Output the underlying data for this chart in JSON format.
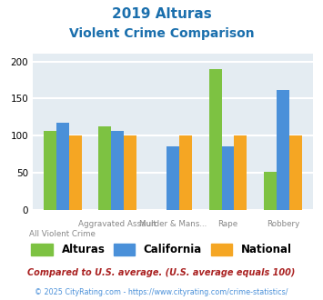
{
  "title_line1": "2019 Alturas",
  "title_line2": "Violent Crime Comparison",
  "categories": [
    "All Violent Crime",
    "Aggravated Assault",
    "Murder & Mans...",
    "Rape",
    "Robbery"
  ],
  "series": {
    "Alturas": [
      107,
      113,
      0,
      190,
      51
    ],
    "California": [
      118,
      107,
      86,
      86,
      162
    ],
    "National": [
      100,
      100,
      100,
      100,
      100
    ]
  },
  "colors": {
    "Alturas": "#7dc242",
    "California": "#4a90d9",
    "National": "#f5a623"
  },
  "ylim": [
    0,
    210
  ],
  "yticks": [
    0,
    50,
    100,
    150,
    200
  ],
  "title_color": "#1a6fad",
  "background_color": "#e4ecf2",
  "grid_color": "#ffffff",
  "xtick_top": [
    "",
    "Aggravated Assault",
    "Murder & Mans...",
    "Rape",
    "Robbery"
  ],
  "xtick_bottom": [
    "All Violent Crime",
    "",
    "",
    "",
    ""
  ],
  "legend_labels": [
    "Alturas",
    "California",
    "National"
  ],
  "footnote1": "Compared to U.S. average. (U.S. average equals 100)",
  "footnote2": "© 2025 CityRating.com - https://www.cityrating.com/crime-statistics/",
  "footnote1_color": "#aa2222",
  "footnote2_color": "#4a90d9"
}
